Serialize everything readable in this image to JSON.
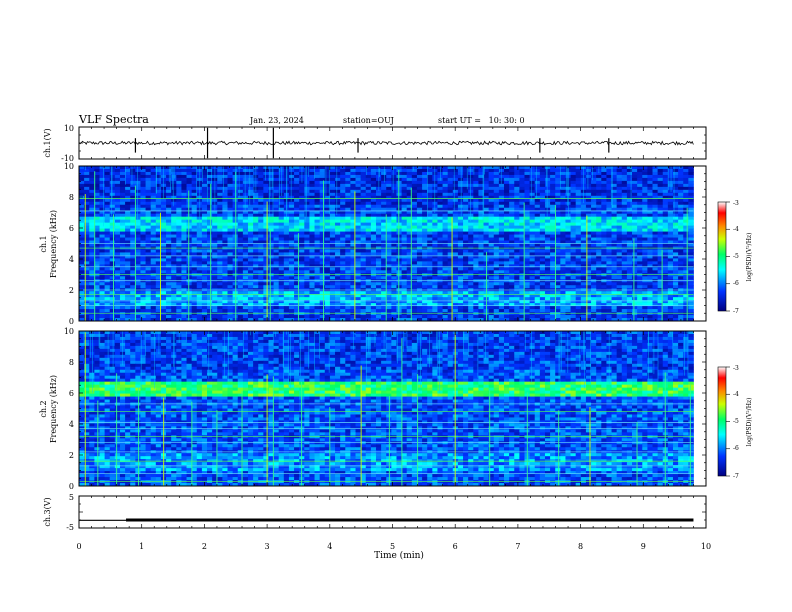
{
  "header": {
    "title": "VLF Spectra",
    "date": "Jan. 23, 2024",
    "station": "station=OUJ",
    "start": "start UT =   10: 30: 0"
  },
  "colors": {
    "colorbar_stops": [
      "#000080",
      "#0033ff",
      "#00ffff",
      "#00ff66",
      "#ccff00",
      "#ff8800",
      "#ff0000",
      "#ffffff"
    ]
  },
  "chart_data": [
    {
      "type": "line",
      "panel": "ch1",
      "ylabel": "ch.1(V)",
      "ylim": [
        -10,
        10
      ],
      "yticks": [
        "10",
        "-10"
      ],
      "xlim": [
        0,
        10
      ],
      "series": [
        {
          "baseline": 0,
          "spikes_x": [
            0.9,
            2.05,
            3.1,
            4.45,
            7.35,
            8.45
          ]
        }
      ]
    },
    {
      "type": "heatmap",
      "panel": "ch1-spectrogram",
      "ylabel": "ch.1\nFrequency (kHz)",
      "ylim": [
        0,
        10
      ],
      "yticks": [
        "0",
        "2",
        "4",
        "6",
        "8",
        "10"
      ],
      "xlim": [
        0,
        9.8
      ],
      "colorbar": {
        "label": "log(PSD)(V²/Hz)",
        "range": [
          -7,
          -3
        ],
        "ticks": [
          "-3",
          "-4",
          "-5",
          "-6",
          "-7"
        ]
      },
      "background_level": -6.3,
      "bands": [
        {
          "kHz_from": 5.8,
          "kHz_to": 6.8,
          "level": -5.6
        },
        {
          "kHz_from": 0.9,
          "kHz_to": 2.0,
          "level": -5.8
        }
      ],
      "lines_kHz": [
        0.5,
        1.0,
        1.3,
        1.7,
        2.0,
        2.6,
        3.0,
        3.5,
        4.2,
        4.7,
        5.0,
        7.1,
        7.9
      ],
      "sferic_times_min": [
        0.1,
        0.25,
        0.55,
        0.9,
        1.3,
        1.75,
        2.1,
        2.5,
        3.0,
        3.05,
        3.5,
        3.9,
        4.4,
        4.9,
        5.1,
        5.3,
        5.95,
        6.5,
        7.1,
        7.6,
        8.1,
        8.85,
        9.3,
        9.7
      ]
    },
    {
      "type": "heatmap",
      "panel": "ch2-spectrogram",
      "ylabel": "ch.2\nFrequency (kHz)",
      "ylim": [
        0,
        10
      ],
      "yticks": [
        "0",
        "2",
        "4",
        "6",
        "8",
        "10"
      ],
      "xlim": [
        0,
        9.8
      ],
      "colorbar": {
        "label": "log(PSD)(V²/Hz)",
        "range": [
          -7,
          -3
        ],
        "ticks": [
          "-3",
          "-4",
          "-5",
          "-6",
          "-7"
        ]
      },
      "background_level": -6.2,
      "bands": [
        {
          "kHz_from": 5.8,
          "kHz_to": 6.8,
          "level": -4.9
        },
        {
          "kHz_from": 1.0,
          "kHz_to": 2.2,
          "level": -5.9
        }
      ],
      "lines_kHz": [
        0.3,
        0.8,
        1.3,
        1.6,
        2.2,
        2.8,
        3.2,
        3.7,
        4.1,
        4.8,
        5.3
      ],
      "sferic_times_min": [
        0.1,
        0.3,
        0.6,
        0.95,
        1.35,
        1.8,
        2.2,
        2.6,
        3.0,
        3.1,
        3.55,
        4.0,
        4.5,
        4.95,
        5.15,
        5.4,
        6.0,
        6.55,
        7.15,
        7.65,
        8.15,
        8.9,
        9.35,
        9.75
      ]
    },
    {
      "type": "line",
      "panel": "ch3",
      "ylabel": "ch.3(V)",
      "ylim": [
        -5,
        5
      ],
      "yticks": [
        "5",
        "-5"
      ],
      "xlim": [
        0,
        10
      ],
      "xlabel": "Time (min)",
      "xticks": [
        "0",
        "1",
        "2",
        "3",
        "4",
        "5",
        "6",
        "7",
        "8",
        "9",
        "10"
      ],
      "series": [
        {
          "segments": [
            {
              "x": [
                0,
                0.75
              ],
              "y": -2.6
            },
            {
              "x": [
                0.75,
                9.8
              ],
              "y": -2.5
            }
          ]
        }
      ]
    }
  ]
}
